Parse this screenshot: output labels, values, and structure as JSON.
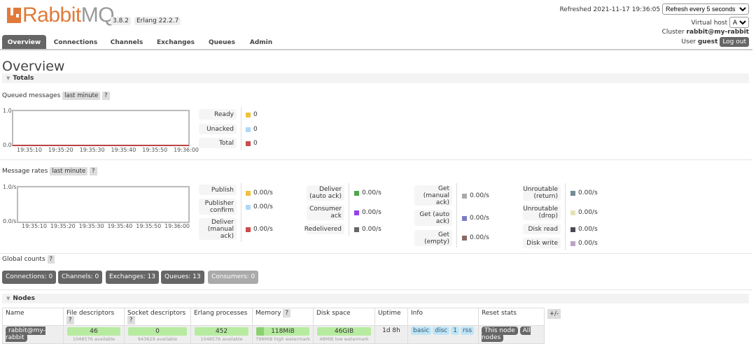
{
  "header": {
    "logo_text": "RabbitMQ",
    "logo_a": "Rabbit",
    "logo_b": "MQ",
    "version": "3.8.2",
    "erlang": "Erlang 22.2.7",
    "refreshed_label": "Refreshed 2021-11-17 19:36:05",
    "refresh_select": "Refresh every 5 seconds",
    "vhost_label": "Virtual host",
    "vhost_select": "All",
    "cluster_label": "Cluster",
    "cluster_name": "rabbit@my-rabbit",
    "user_label": "User",
    "user_name": "guest",
    "logout": "Log out"
  },
  "tabs": [
    "Overview",
    "Connections",
    "Channels",
    "Exchanges",
    "Queues",
    "Admin"
  ],
  "page_title": "Overview",
  "totals": {
    "title": "Totals",
    "queued": {
      "label": "Queued messages",
      "range": "last minute",
      "help": "?",
      "y_ticks": [
        "1.0",
        "0.0"
      ],
      "x_ticks": [
        "19:35:10",
        "19:35:20",
        "19:35:30",
        "19:35:40",
        "19:35:50",
        "19:36:00"
      ],
      "legend": [
        {
          "label": "Ready",
          "value": "0",
          "color": "#edc240"
        },
        {
          "label": "Unacked",
          "value": "0",
          "color": "#afd8f8"
        },
        {
          "label": "Total",
          "value": "0",
          "color": "#cb4b4b"
        }
      ]
    },
    "rates": {
      "label": "Message rates",
      "range": "last minute",
      "help": "?",
      "y_ticks": [
        "1.0/s",
        "0.0/s"
      ],
      "x_ticks": [
        "19:35:10",
        "19:35:20",
        "19:35:30",
        "19:35:40",
        "19:35:50",
        "19:36:00"
      ],
      "legend": [
        {
          "label": "Publish",
          "value": "0.00/s",
          "color": "#edc240"
        },
        {
          "label": "Publisher confirm",
          "value": "0.00/s",
          "color": "#afd8f8"
        },
        {
          "label": "Deliver (manual ack)",
          "value": "0.00/s",
          "color": "#cb4b4b"
        },
        {
          "label": "Deliver (auto ack)",
          "value": "0.00/s",
          "color": "#4da74d"
        },
        {
          "label": "Consumer ack",
          "value": "0.00/s",
          "color": "#9440ed"
        },
        {
          "label": "Redelivered",
          "value": "0.00/s",
          "color": "#666666"
        },
        {
          "label": "Get (manual ack)",
          "value": "0.00/s",
          "color": "#aaaaaa"
        },
        {
          "label": "Get (auto ack)",
          "value": "0.00/s",
          "color": "#7c7cc4"
        },
        {
          "label": "Get (empty)",
          "value": "0.00/s",
          "color": "#8a6a66"
        },
        {
          "label": "Unroutable (return)",
          "value": "0.00/s",
          "color": "#758a94"
        },
        {
          "label": "Unroutable (drop)",
          "value": "0.00/s",
          "color": "#e5e2b8"
        },
        {
          "label": "Disk read",
          "value": "0.00/s",
          "color": "#4a4a52"
        },
        {
          "label": "Disk write",
          "value": "0.00/s",
          "color": "#b9a6c6"
        }
      ]
    },
    "global": {
      "label": "Global counts",
      "help": "?",
      "counts": [
        "Connections: 0",
        "Channels: 0",
        "Exchanges: 13",
        "Queues: 13",
        "Consumers: 0"
      ]
    }
  },
  "nodes": {
    "title": "Nodes",
    "columns": [
      "Name",
      "File descriptors",
      "Socket descriptors",
      "Erlang processes",
      "Memory",
      "Disk space",
      "Uptime",
      "Info",
      "Reset stats"
    ],
    "help": "?",
    "toggle": "+/-",
    "row": {
      "name": "rabbit@my-rabbit",
      "fd": "46",
      "fd_sub": "1048576 available",
      "sd": "0",
      "sd_sub": "943629 available",
      "ep": "452",
      "ep_sub": "1048576 available",
      "mem": "118MiB",
      "mem_sub": "799MiB high watermark",
      "mem_fraction": 0.15,
      "disk": "46GIB",
      "disk_sub": "48MiB low watermark",
      "uptime": "1d 8h",
      "info": [
        "basic",
        "disc",
        "1",
        "rss"
      ],
      "reset_this": "This node",
      "reset_all": "All nodes"
    }
  }
}
